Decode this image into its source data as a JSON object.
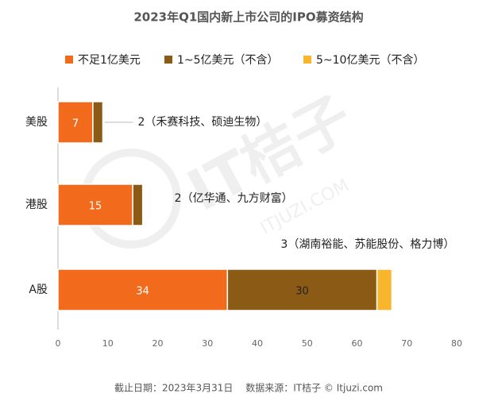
{
  "chart_data": {
    "type": "stacked-barh",
    "title": "2023年Q1国内新上市公司的IPO募资结构",
    "categories": [
      "美股",
      "港股",
      "A股"
    ],
    "series": [
      {
        "name": "不足1亿美元",
        "color": "#f26b1d",
        "values": [
          7,
          15,
          34
        ]
      },
      {
        "name": "1~5亿美元（不含）",
        "color": "#8b5a14",
        "values": [
          2,
          2,
          30
        ],
        "value_labels": [
          "2（禾赛科技、硕迪生物）",
          "2（亿华通、九方财富）",
          "30"
        ]
      },
      {
        "name": "5~10亿美元（不含）",
        "color": "#f8b62d",
        "values": [
          null,
          null,
          3
        ],
        "value_labels": [
          null,
          null,
          "3（湖南裕能、苏能股份、格力博）"
        ]
      }
    ],
    "xlim": [
      0,
      80
    ],
    "xticks": [
      0,
      10,
      20,
      30,
      40,
      50,
      60,
      70,
      80
    ],
    "legend": "top",
    "watermark": "IT桔子",
    "watermark_sub": "ITJUZI.COM",
    "footer": "截止日期：2023年3月31日　 数据来源：IT桔子 © Itjuzi.com"
  }
}
